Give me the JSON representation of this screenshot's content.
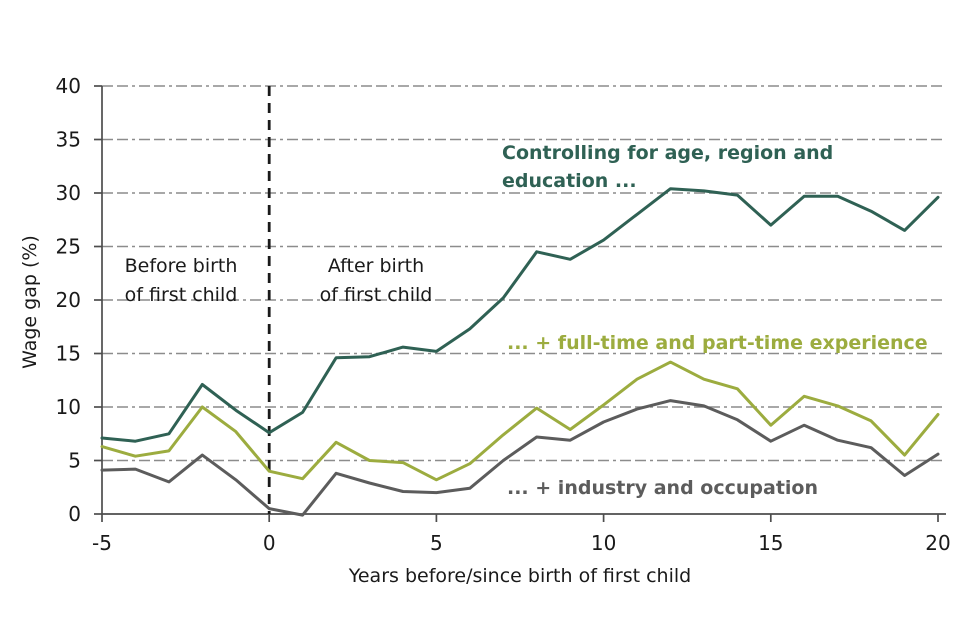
{
  "chart_data": {
    "type": "line",
    "title": "",
    "xlabel": "Years before/since birth of first child",
    "ylabel": "Wage gap (%)",
    "xlim": [
      -5,
      20
    ],
    "ylim": [
      0,
      40
    ],
    "x_ticks": [
      -5,
      0,
      5,
      10,
      15,
      20
    ],
    "y_ticks": [
      0,
      5,
      10,
      15,
      20,
      25,
      30,
      35,
      40
    ],
    "grid": {
      "horizontal_dashed": true,
      "color": "#8C8C8C"
    },
    "axis_color": "#4D4D4D",
    "text_color": "#1A1A1A",
    "legend_position": "inline-labels-on-plot",
    "reference_line": {
      "x": 0,
      "style": "dashed",
      "color": "#1A1A1A"
    },
    "x": [
      -5,
      -4,
      -3,
      -2,
      -1,
      0,
      1,
      2,
      3,
      4,
      5,
      6,
      7,
      8,
      9,
      10,
      11,
      12,
      13,
      14,
      15,
      16,
      17,
      18,
      19,
      20
    ],
    "series": [
      {
        "name": "Controlling for age, region and education ...",
        "color": "#2F6154",
        "values": [
          7.1,
          6.8,
          7.5,
          12.1,
          9.7,
          7.6,
          9.5,
          14.6,
          14.7,
          15.6,
          15.2,
          17.3,
          20.2,
          24.5,
          23.8,
          25.6,
          28,
          30.4,
          30.2,
          29.8,
          27,
          29.7,
          29.7,
          28.3,
          26.5,
          29.6
        ]
      },
      {
        "name": "... + full-time and part-time experience",
        "color": "#9CAC3F",
        "values": [
          6.3,
          5.4,
          5.9,
          10,
          7.7,
          4,
          3.3,
          6.7,
          5,
          4.8,
          3.2,
          4.7,
          7.4,
          9.9,
          7.9,
          10.2,
          12.6,
          14.2,
          12.6,
          11.7,
          8.3,
          11,
          10.1,
          8.7,
          5.5,
          9.3
        ]
      },
      {
        "name": "... + industry and occupation",
        "color": "#5C5C5C",
        "values": [
          4.1,
          4.2,
          3,
          5.5,
          3.2,
          0.5,
          -0.1,
          3.8,
          2.9,
          2.1,
          2,
          2.4,
          5,
          7.2,
          6.9,
          8.6,
          9.8,
          10.6,
          10.1,
          8.8,
          6.8,
          8.3,
          6.9,
          6.2,
          3.6,
          5.6
        ]
      }
    ],
    "annotations": [
      {
        "lines": [
          "Before birth",
          "of first child"
        ],
        "side": "left-of-reference-line"
      },
      {
        "lines": [
          "After birth",
          "of first child"
        ],
        "side": "right-of-reference-line"
      }
    ]
  }
}
